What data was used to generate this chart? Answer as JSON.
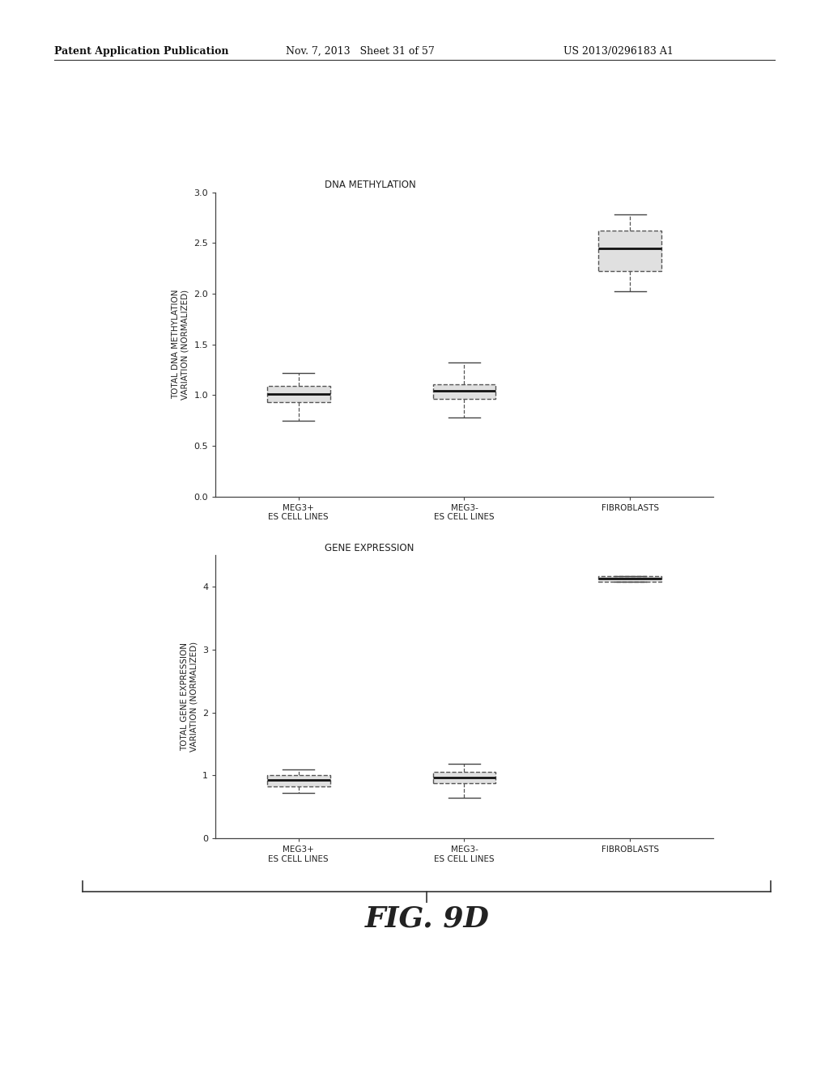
{
  "background_color": "#ffffff",
  "header_left": "Patent Application Publication",
  "header_mid": "Nov. 7, 2013   Sheet 31 of 57",
  "header_right": "US 2013/0296183 A1",
  "figure_label": "FIG. 9D",
  "chart1": {
    "title": "DNA METHYLATION",
    "ylabel_line1": "TOTAL DNA METHYLATION",
    "ylabel_line2": "VARIATION (NORMALIZED)",
    "categories": [
      "MEG3+\nES CELL LINES",
      "MEG3-\nES CELL LINES",
      "FIBROBLASTS"
    ],
    "ylim": [
      0.0,
      3.0
    ],
    "yticks": [
      0.0,
      0.5,
      1.0,
      1.5,
      2.0,
      2.5,
      3.0
    ],
    "ytick_labels": [
      "0.0",
      "0.5",
      "1.0",
      "1.5",
      "2.0",
      "2.5",
      "3.0"
    ],
    "boxes": [
      {
        "q1": 0.93,
        "median": 1.01,
        "q3": 1.09,
        "whisker_low": 0.75,
        "whisker_high": 1.22
      },
      {
        "q1": 0.96,
        "median": 1.04,
        "q3": 1.11,
        "whisker_low": 0.78,
        "whisker_high": 1.32
      },
      {
        "q1": 2.22,
        "median": 2.45,
        "q3": 2.62,
        "whisker_low": 2.02,
        "whisker_high": 2.78
      }
    ]
  },
  "chart2": {
    "title": "GENE EXPRESSION",
    "ylabel_line1": "TOTAL GENE EXPRESSION",
    "ylabel_line2": "VARIATION (NORMALIZED)",
    "categories": [
      "MEG3+\nES CELL LINES",
      "MEG3-\nES CELL LINES",
      "FIBROBLASTS"
    ],
    "ylim": [
      0,
      4.5
    ],
    "yticks": [
      0,
      1,
      2,
      3,
      4
    ],
    "ytick_labels": [
      "0",
      "1",
      "2",
      "3",
      "4"
    ],
    "boxes": [
      {
        "q1": 0.83,
        "median": 0.93,
        "q3": 1.01,
        "whisker_low": 0.72,
        "whisker_high": 1.1
      },
      {
        "q1": 0.88,
        "median": 0.97,
        "q3": 1.06,
        "whisker_low": 0.65,
        "whisker_high": 1.18
      },
      {
        "q1": 4.08,
        "median": 4.13,
        "q3": 4.17,
        "whisker_low": 4.08,
        "whisker_high": 4.17
      }
    ]
  }
}
